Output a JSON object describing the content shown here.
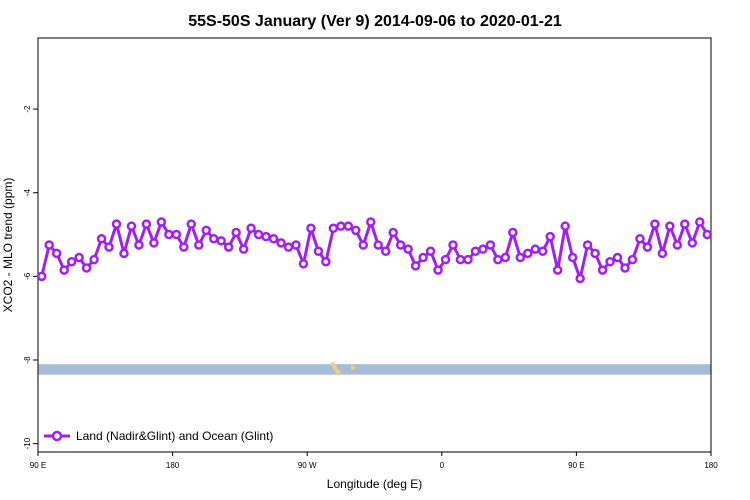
{
  "chart_data": {
    "type": "line",
    "title": "55S-50S January (Ver 9)   2014-09-06 to 2020-01-21",
    "xlabel": "Longitude (deg E)",
    "ylabel": "XCO2 - MLO trend (ppm)",
    "x_range": [
      90,
      540
    ],
    "ylim": [
      -10.2,
      -0.3
    ],
    "x_ticks": [
      {
        "value": 90,
        "label": "90 E"
      },
      {
        "value": 180,
        "label": "180"
      },
      {
        "value": 270,
        "label": "90 W"
      },
      {
        "value": 360,
        "label": "0"
      },
      {
        "value": 450,
        "label": "90 E"
      },
      {
        "value": 540,
        "label": "180"
      }
    ],
    "y_ticks": [
      {
        "value": -2,
        "label": "-2"
      },
      {
        "value": -4,
        "label": "-4"
      },
      {
        "value": -6,
        "label": "-6"
      },
      {
        "value": -8,
        "label": "-8"
      },
      {
        "value": -10,
        "label": "-10"
      }
    ],
    "grid": false,
    "legend": {
      "position": "bottom-left",
      "entries": [
        "Land (Nadir&Glint) and Ocean (Glint)"
      ]
    },
    "series": [
      {
        "name": "Land (Nadir&Glint) and Ocean (Glint)",
        "color": "#a020f0",
        "x": [
          92.5,
          97.5,
          102.5,
          107.5,
          112.5,
          117.5,
          122.5,
          127.5,
          132.5,
          137.5,
          142.5,
          147.5,
          152.5,
          157.5,
          162.5,
          167.5,
          172.5,
          177.5,
          182.5,
          187.5,
          192.5,
          197.5,
          202.5,
          207.5,
          212.5,
          217.5,
          222.5,
          227.5,
          232.5,
          237.5,
          242.5,
          247.5,
          252.5,
          257.5,
          262.5,
          267.5,
          272.5,
          277.5,
          282.5,
          287.5,
          292.5,
          297.5,
          302.5,
          307.5,
          312.5,
          317.5,
          322.5,
          327.5,
          332.5,
          337.5,
          342.5,
          347.5,
          352.5,
          357.5,
          362.5,
          367.5,
          372.5,
          377.5,
          382.5,
          387.5,
          392.5,
          397.5,
          402.5,
          407.5,
          412.5,
          417.5,
          422.5,
          427.5,
          432.5,
          437.5,
          442.5,
          447.5,
          452.5,
          457.5,
          462.5,
          467.5,
          472.5,
          477.5,
          482.5,
          487.5,
          492.5,
          497.5,
          502.5,
          507.5,
          512.5,
          517.5,
          522.5,
          527.5,
          532.5,
          537.5
        ],
        "values": [
          -6.0,
          -5.25,
          -5.45,
          -5.85,
          -5.65,
          -5.55,
          -5.8,
          -5.6,
          -5.1,
          -5.3,
          -4.75,
          -5.45,
          -4.8,
          -5.25,
          -4.75,
          -5.2,
          -4.7,
          -5.0,
          -5.0,
          -5.3,
          -4.75,
          -5.25,
          -4.9,
          -5.1,
          -5.15,
          -5.3,
          -4.95,
          -5.35,
          -4.85,
          -5.0,
          -5.05,
          -5.1,
          -5.2,
          -5.3,
          -5.25,
          -5.7,
          -4.85,
          -5.4,
          -5.65,
          -4.85,
          -4.8,
          -4.8,
          -4.9,
          -5.25,
          -4.7,
          -5.25,
          -5.4,
          -4.95,
          -5.25,
          -5.35,
          -5.75,
          -5.55,
          -5.4,
          -5.85,
          -5.6,
          -5.25,
          -5.6,
          -5.6,
          -5.4,
          -5.35,
          -5.25,
          -5.6,
          -5.55,
          -4.95,
          -5.55,
          -5.45,
          -5.35,
          -5.4,
          -5.05,
          -5.85,
          -4.8,
          -5.55,
          -6.05,
          -5.25,
          -5.45,
          -5.85,
          -5.65,
          -5.55,
          -5.8,
          -5.6,
          -5.1,
          -5.3,
          -4.75,
          -5.45,
          -4.8,
          -5.25,
          -4.75,
          -5.2,
          -4.7,
          -5.0
        ]
      }
    ],
    "bands": [
      {
        "kind": "ocean",
        "color": "#a7bcd9",
        "y_range": [
          -8.35,
          -8.1
        ]
      }
    ],
    "land_marks": {
      "color": "#f3cf7a",
      "points": [
        [
          287.0,
          -8.1
        ],
        [
          288.5,
          -8.18
        ],
        [
          290.0,
          -8.26
        ],
        [
          291.0,
          -8.32
        ],
        [
          300.5,
          -8.18
        ]
      ]
    }
  }
}
